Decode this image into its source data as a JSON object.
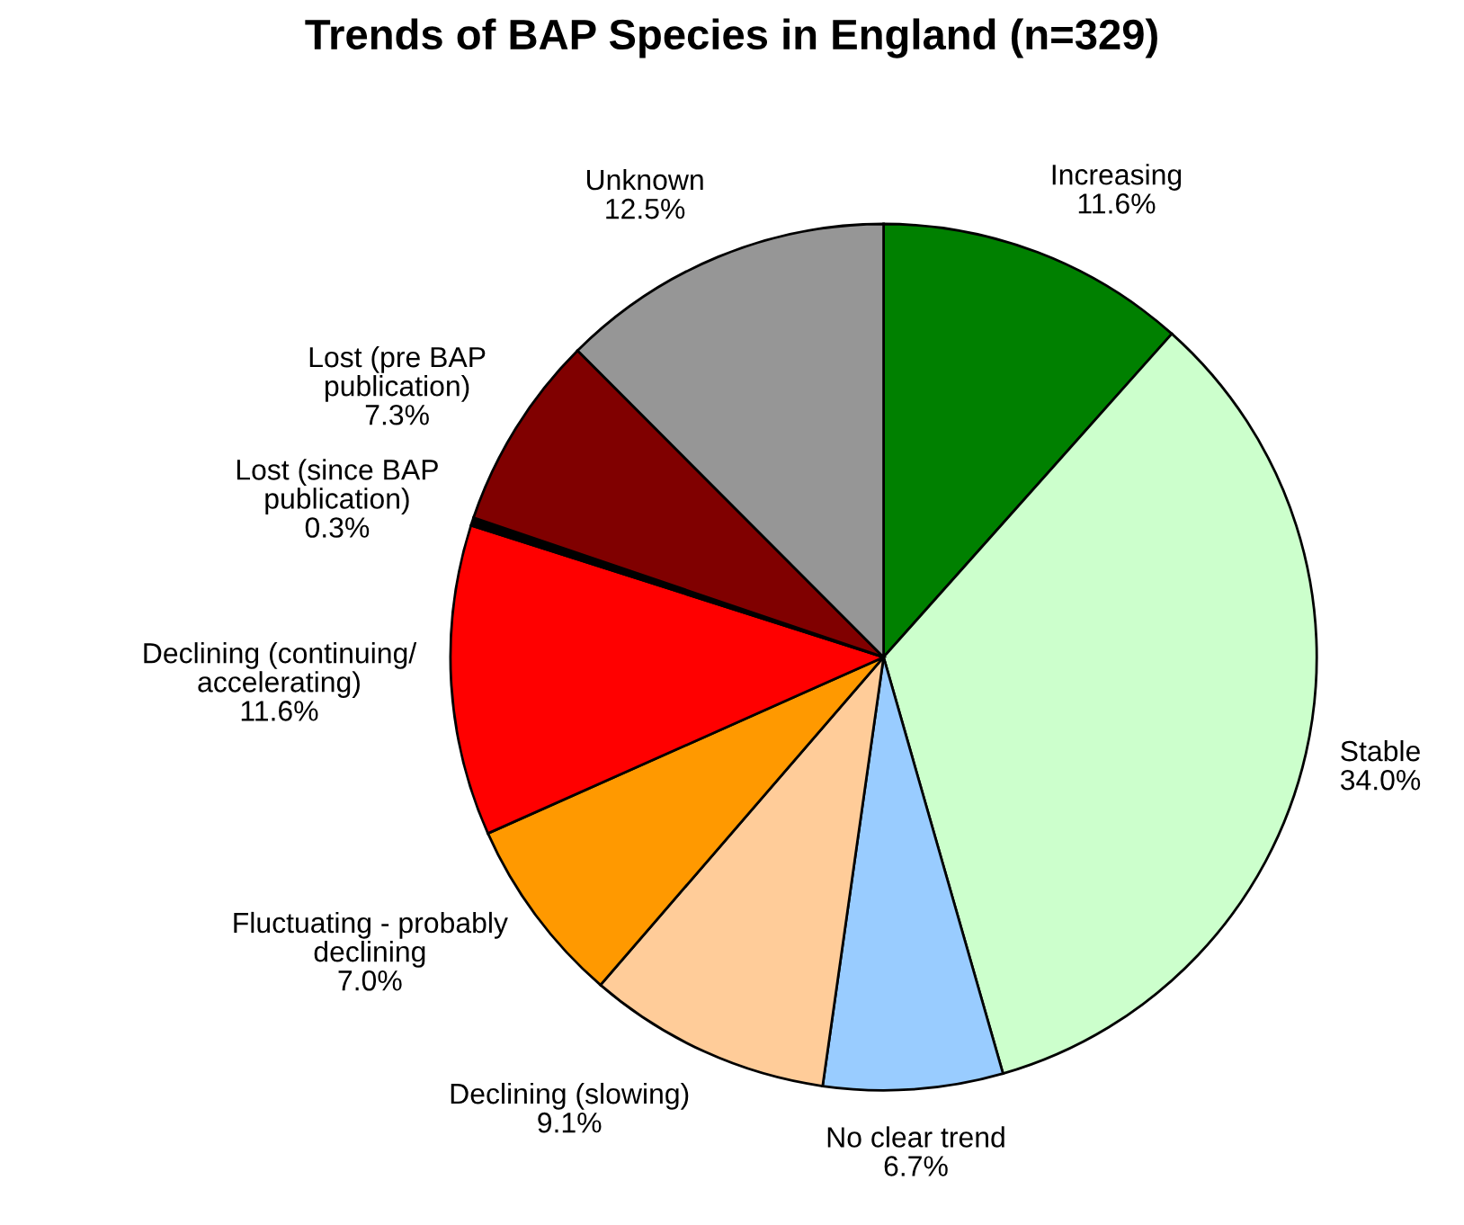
{
  "chart_data": {
    "type": "pie",
    "title": "Trends of BAP Species in England (n=329)",
    "categories": [
      "Increasing",
      "Stable",
      "No clear trend",
      "Declining (slowing)",
      "Fluctuating - probably\ndeclining",
      "Declining (continuing/\naccelerating)",
      "Lost (since BAP\npublication)",
      "Lost (pre BAP\npublication)",
      "Unknown"
    ],
    "values": [
      11.6,
      34.0,
      6.7,
      9.1,
      7.0,
      11.6,
      0.3,
      7.3,
      12.5
    ],
    "value_labels": [
      "11.6%",
      "34.0%",
      "6.7%",
      "9.1%",
      "7.0%",
      "11.6%",
      "0.3%",
      "7.3%",
      "12.5%"
    ],
    "colors": [
      "#008000",
      "#ccffcc",
      "#99ccff",
      "#ffcc99",
      "#ff9900",
      "#ff0000",
      "#000000",
      "#800000",
      "#969696"
    ],
    "legend": false
  }
}
